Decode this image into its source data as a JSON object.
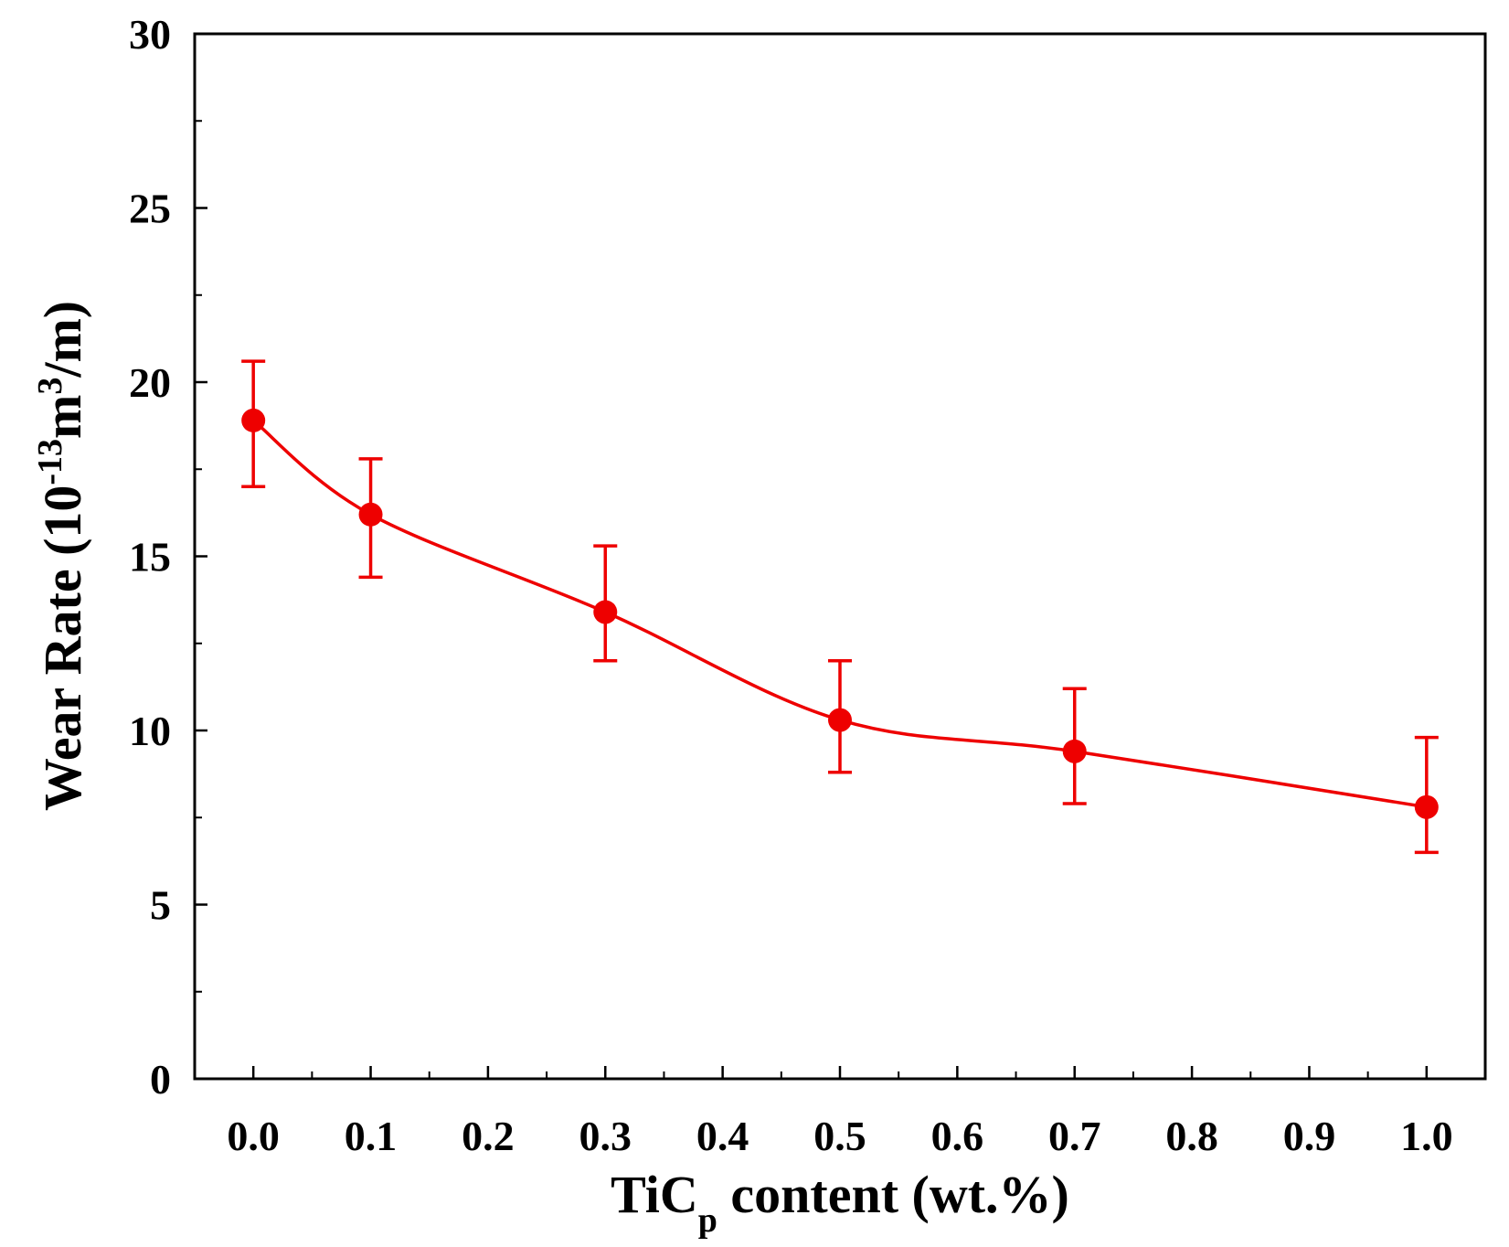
{
  "chart_data": {
    "type": "line",
    "title": "",
    "xlabel": {
      "main": "TiC",
      "subscript": "p",
      "rest": " content (wt.%)"
    },
    "ylabel": {
      "prefix": "Wear Rate (10",
      "exp1": "-13",
      "mid": "m",
      "exp2": "3",
      "suffix": "/m)"
    },
    "xlim": [
      -0.05,
      1.05
    ],
    "ylim": [
      0,
      30
    ],
    "x_ticks": [
      0.0,
      0.1,
      0.2,
      0.3,
      0.4,
      0.5,
      0.6,
      0.7,
      0.8,
      0.9,
      1.0
    ],
    "x_tick_labels": [
      "0.0",
      "0.1",
      "0.2",
      "0.3",
      "0.4",
      "0.5",
      "0.6",
      "0.7",
      "0.8",
      "0.9",
      "1.0"
    ],
    "y_ticks": [
      0,
      5,
      10,
      15,
      20,
      25,
      30
    ],
    "y_tick_labels": [
      "0",
      "5",
      "10",
      "15",
      "20",
      "25",
      "30"
    ],
    "grid": false,
    "color": "#ee0000",
    "series": [
      {
        "name": "Wear rate",
        "x": [
          0.0,
          0.1,
          0.3,
          0.5,
          0.7,
          1.0
        ],
        "y": [
          18.9,
          16.2,
          13.4,
          10.3,
          9.4,
          7.8
        ],
        "err_low": [
          17.0,
          14.4,
          12.0,
          8.8,
          7.9,
          6.5
        ],
        "err_high": [
          20.6,
          17.8,
          15.3,
          12.0,
          11.2,
          9.8
        ]
      }
    ]
  }
}
